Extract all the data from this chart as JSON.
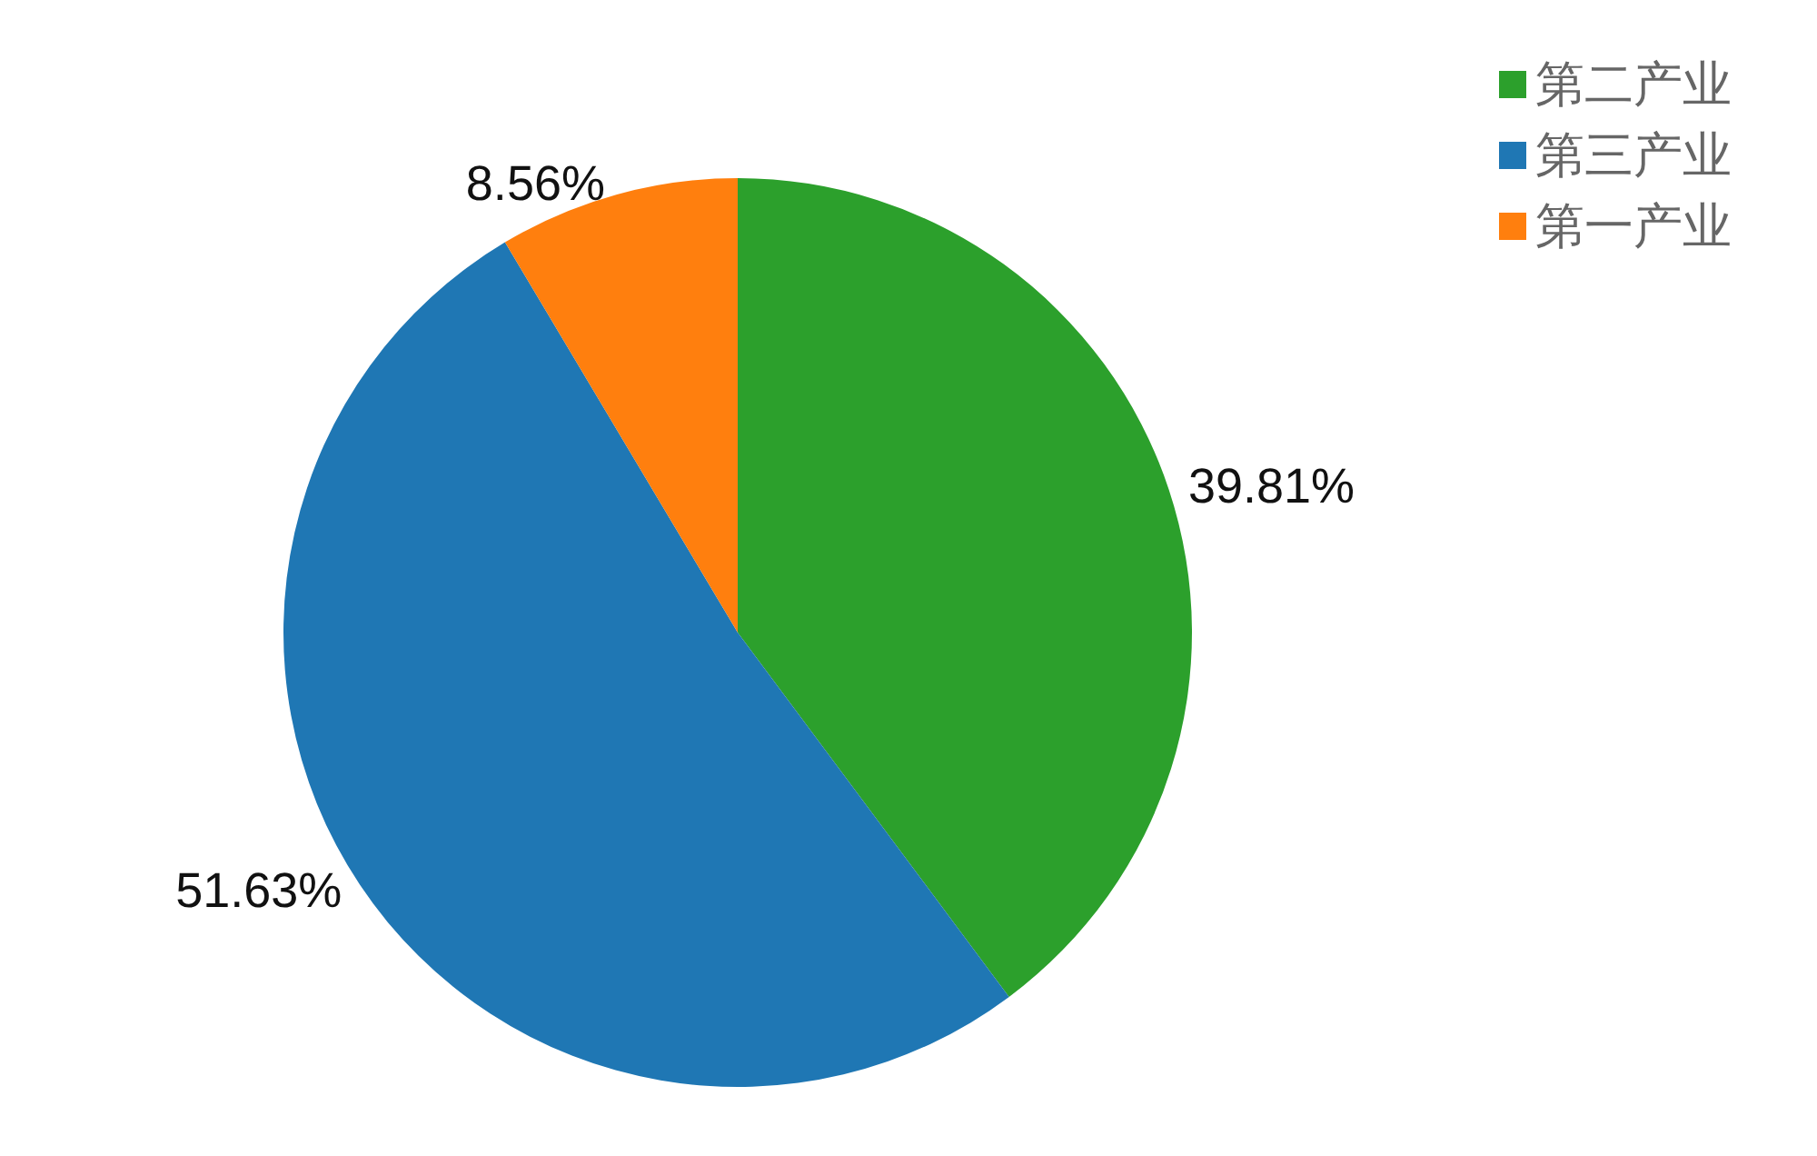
{
  "chart_data": {
    "type": "pie",
    "categories": [
      "第二产业",
      "第三产业",
      "第一产业"
    ],
    "values": [
      39.81,
      51.63,
      8.56
    ],
    "colors": [
      "#2ca02c",
      "#1f77b4",
      "#ff7f0e"
    ],
    "value_labels": [
      "39.81%",
      "51.63%",
      "8.56%"
    ],
    "legend": "top right"
  }
}
